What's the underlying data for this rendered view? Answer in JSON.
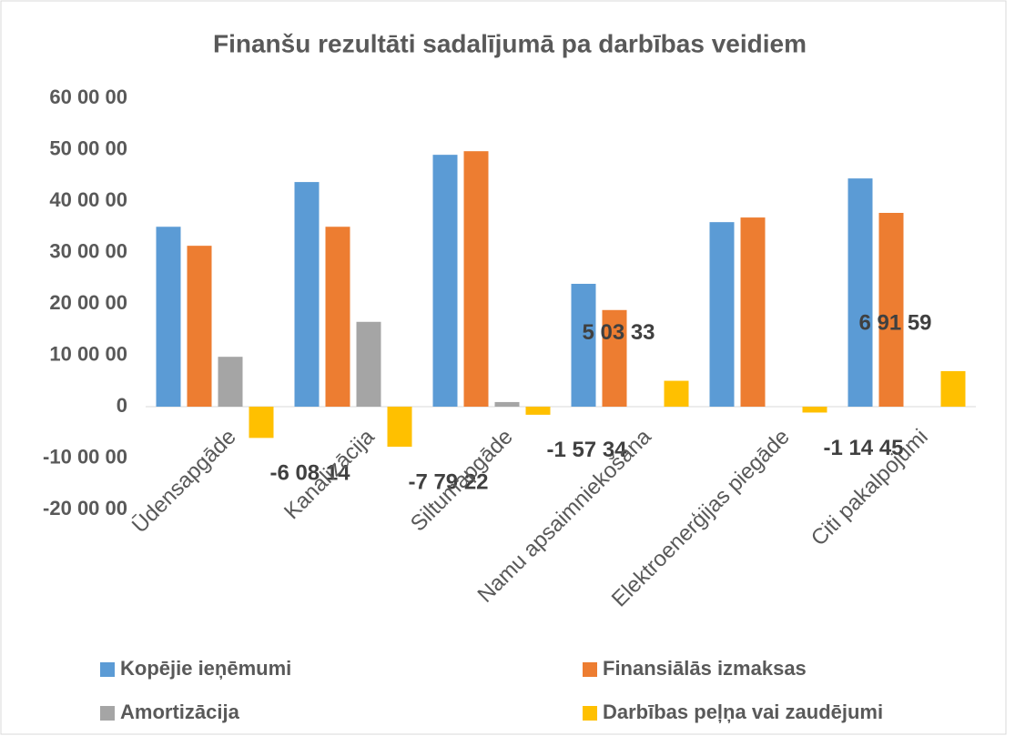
{
  "chart_data": {
    "type": "bar",
    "title": "Finanšu rezultāti sadalījumā pa darbības veidiem",
    "categories": [
      "Ūdensapgāde",
      "Kanalizācija",
      "Siltumapgāde",
      "Namu apsaimniekošana",
      "Elektroenerģijas piegāde",
      "Citi pakalpojumi"
    ],
    "series": [
      {
        "name": "Kopējie ieņēmumi",
        "color": "#5b9bd5",
        "values": [
          350000,
          437000,
          490000,
          239000,
          359000,
          444000
        ]
      },
      {
        "name": "Finansiālās izmaksas",
        "color": "#ed7d31",
        "values": [
          313000,
          350000,
          497000,
          188000,
          368000,
          377000
        ]
      },
      {
        "name": "Amortizācija",
        "color": "#a5a5a5",
        "values": [
          97000,
          165000,
          9000,
          0,
          0,
          0
        ]
      },
      {
        "name": "Darbības peļņa vai zaudējumi",
        "color": "#ffc000",
        "values": [
          -60814,
          -77922,
          -15734,
          50333,
          -11445,
          69159
        ],
        "value_labels": [
          "-6 08 14",
          "-7 79 22",
          "-1 57 34",
          "5 03 33",
          "-1 14 45",
          "6 91 59"
        ]
      }
    ],
    "ylim": [
      -200000,
      600000
    ],
    "yticks": [
      {
        "value": -200000,
        "label": "-20 00 00"
      },
      {
        "value": -100000,
        "label": "-10 00 00"
      },
      0,
      {
        "value": 100000,
        "label": "10 00 00"
      },
      {
        "value": 200000,
        "label": "20 00 00"
      },
      {
        "value": 300000,
        "label": "30 00 00"
      },
      {
        "value": 400000,
        "label": "40 00 00"
      },
      {
        "value": 500000,
        "label": "50 00 00"
      },
      {
        "value": 600000,
        "label": "60 00 00"
      }
    ],
    "legend": "bottom"
  }
}
